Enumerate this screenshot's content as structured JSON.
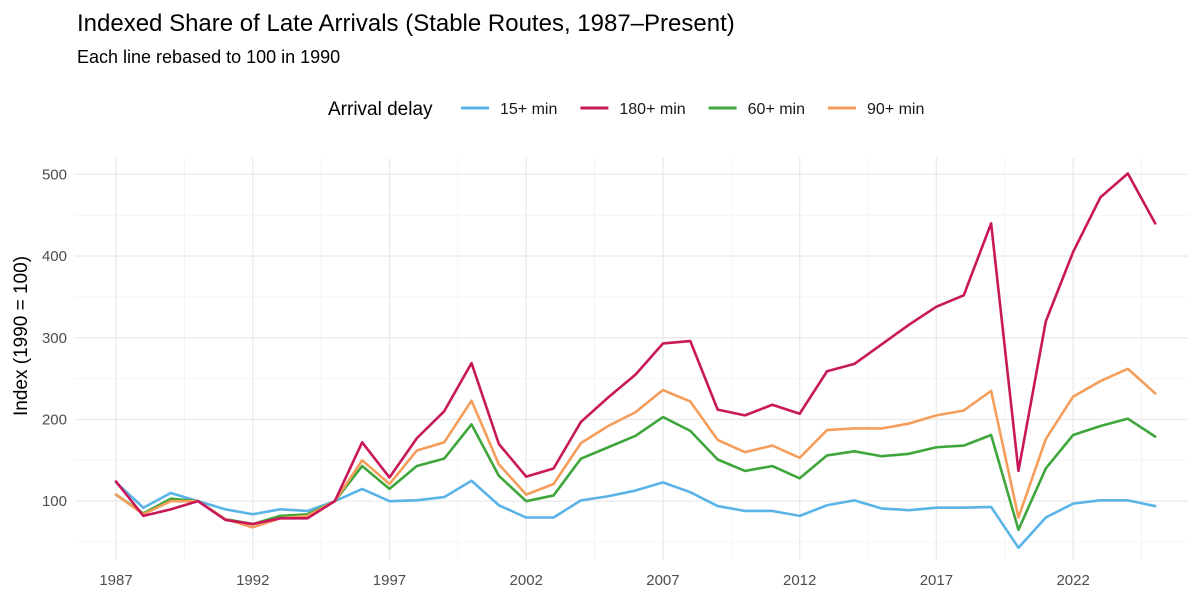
{
  "chart_data": {
    "type": "line",
    "title": "Indexed Share of Late Arrivals (Stable Routes, 1987–Present)",
    "subtitle": "Each line rebased to 100 in 1990",
    "xlabel": "",
    "ylabel": "Index (1990 = 100)",
    "legend_title": "Arrival delay",
    "legend_position": "top",
    "grid": true,
    "xlim": [
      1985.5,
      2026.2
    ],
    "ylim": [
      28,
      520
    ],
    "x_ticks": [
      1987,
      1992,
      1997,
      2002,
      2007,
      2012,
      2017,
      2022
    ],
    "y_ticks": [
      100,
      200,
      300,
      400,
      500
    ],
    "x": [
      1987,
      1988,
      1989,
      1990,
      1991,
      1992,
      1993,
      1994,
      1995,
      1996,
      1997,
      1998,
      1999,
      2000,
      2001,
      2002,
      2003,
      2004,
      2005,
      2006,
      2007,
      2008,
      2009,
      2010,
      2011,
      2012,
      2013,
      2014,
      2015,
      2016,
      2017,
      2018,
      2019,
      2020,
      2021,
      2022,
      2023,
      2024,
      2025
    ],
    "series": [
      {
        "name": "15+ min",
        "color": "#5ab4e8",
        "values": [
          123,
          92,
          110,
          100,
          90,
          84,
          90,
          88,
          100,
          115,
          100,
          101,
          105,
          125,
          95,
          80,
          80,
          101,
          106,
          113,
          123,
          111,
          94,
          88,
          88,
          82,
          95,
          101,
          91,
          89,
          92,
          92,
          93,
          43,
          80,
          97,
          101,
          101,
          94
        ]
      },
      {
        "name": "180+ min",
        "color": "#c8185a",
        "values": [
          124,
          82,
          90,
          100,
          77,
          72,
          79,
          79,
          100,
          172,
          129,
          177,
          210,
          269,
          170,
          130,
          140,
          197,
          227,
          255,
          293,
          296,
          212,
          205,
          218,
          207,
          259,
          268,
          292,
          316,
          338,
          352,
          440,
          137,
          320,
          405,
          472,
          501,
          440
        ]
      },
      {
        "name": "60+ min",
        "color": "#3fa63c",
        "values": [
          108,
          85,
          103,
          100,
          78,
          72,
          82,
          84,
          100,
          143,
          115,
          143,
          152,
          194,
          131,
          100,
          107,
          152,
          166,
          180,
          203,
          186,
          151,
          137,
          143,
          128,
          156,
          161,
          155,
          158,
          166,
          168,
          181,
          65,
          140,
          181,
          192,
          201,
          179
        ]
      },
      {
        "name": "90+ min",
        "color": "#f59d5b",
        "values": [
          108,
          84,
          100,
          100,
          78,
          68,
          79,
          82,
          100,
          150,
          121,
          162,
          172,
          223,
          145,
          108,
          121,
          171,
          192,
          209,
          236,
          222,
          175,
          160,
          168,
          153,
          187,
          189,
          189,
          195,
          205,
          211,
          235,
          80,
          176,
          228,
          247,
          262,
          232
        ]
      }
    ]
  }
}
